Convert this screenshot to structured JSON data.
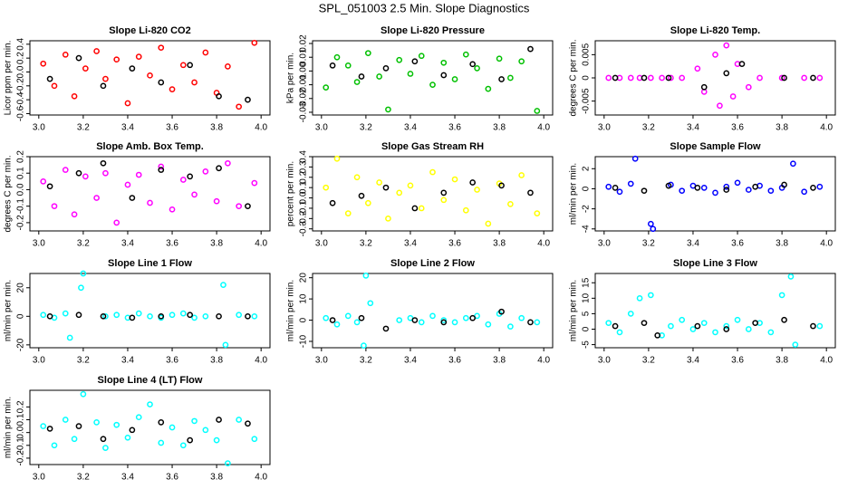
{
  "title": "SPL_051003  2.5 Min. Slope Diagnostics",
  "chart_data": [
    {
      "type": "scatter",
      "title": "Slope Li-820 CO2",
      "y_label": "Licor ppm per min.",
      "xlim": [
        2.96,
        4.04
      ],
      "ylim": [
        -0.62,
        0.45
      ],
      "xticks": [
        {
          "value": 3,
          "label": "3.0"
        },
        3.2,
        3.4,
        3.6,
        3.8,
        {
          "value": 4,
          "label": "4.0"
        }
      ],
      "yticks": [
        -0.6,
        -0.4,
        -0.2,
        {
          "value": 0,
          "label": "0.0"
        },
        0.2,
        0.4
      ],
      "series": [
        {
          "color": "#ff0000",
          "x": [
            3.02,
            3.07,
            3.12,
            3.16,
            3.21,
            3.26,
            3.3,
            3.35,
            3.4,
            3.45,
            3.5,
            3.55,
            3.6,
            3.65,
            3.7,
            3.75,
            3.8,
            3.85,
            3.9,
            3.97
          ],
          "values": [
            0.12,
            -0.2,
            0.25,
            -0.35,
            0.05,
            0.3,
            -0.1,
            0.18,
            -0.45,
            0.22,
            -0.05,
            0.35,
            -0.25,
            0.1,
            -0.15,
            0.28,
            -0.3,
            0.08,
            -0.5,
            0.42
          ]
        },
        {
          "color": "#000000",
          "x": [
            3.05,
            3.18,
            3.29,
            3.42,
            3.55,
            3.68,
            3.81,
            3.94
          ],
          "values": [
            -0.1,
            0.2,
            -0.2,
            0.05,
            -0.15,
            0.1,
            -0.35,
            -0.4
          ]
        }
      ]
    },
    {
      "type": "scatter",
      "title": "Slope Li-820 Pressure",
      "y_label": "kPa per min.",
      "xlim": [
        2.96,
        4.04
      ],
      "ylim": [
        -0.032,
        0.022
      ],
      "xticks": [
        {
          "value": 3,
          "label": "3.0"
        },
        3.2,
        3.4,
        3.6,
        3.8,
        {
          "value": 4,
          "label": "4.0"
        }
      ],
      "yticks": [
        -0.03,
        -0.02,
        -0.01,
        {
          "value": 0,
          "label": "0.00"
        },
        0.01,
        0.02
      ],
      "series": [
        {
          "color": "#00c000",
          "x": [
            3.02,
            3.07,
            3.12,
            3.16,
            3.21,
            3.26,
            3.3,
            3.35,
            3.4,
            3.45,
            3.5,
            3.55,
            3.6,
            3.65,
            3.7,
            3.75,
            3.8,
            3.85,
            3.9,
            3.97
          ],
          "values": [
            -0.012,
            0.01,
            0.004,
            -0.008,
            0.013,
            -0.004,
            -0.028,
            0.008,
            -0.002,
            0.011,
            -0.01,
            0.006,
            -0.006,
            0.012,
            0.002,
            -0.013,
            0.009,
            -0.005,
            0.007,
            -0.029
          ]
        },
        {
          "color": "#000000",
          "x": [
            3.05,
            3.18,
            3.29,
            3.42,
            3.55,
            3.68,
            3.81,
            3.94
          ],
          "values": [
            0.004,
            -0.004,
            0.002,
            0.007,
            -0.003,
            0.005,
            -0.006,
            0.016
          ]
        }
      ]
    },
    {
      "type": "scatter",
      "title": "Slope Li-820 Temp.",
      "y_label": "degrees C per min.",
      "xlim": [
        2.96,
        4.04
      ],
      "ylim": [
        -0.008,
        0.008
      ],
      "xticks": [
        {
          "value": 3,
          "label": "3.0"
        },
        3.2,
        3.4,
        3.6,
        3.8,
        {
          "value": 4,
          "label": "4.0"
        }
      ],
      "yticks": [
        -0.005,
        0,
        0.005
      ],
      "series": [
        {
          "color": "#ff00ff",
          "x": [
            3.02,
            3.07,
            3.12,
            3.16,
            3.21,
            3.26,
            3.3,
            3.35,
            3.42,
            3.45,
            3.5,
            3.52,
            3.55,
            3.58,
            3.6,
            3.65,
            3.7,
            3.8,
            3.9,
            3.97
          ],
          "values": [
            0,
            0,
            0,
            0,
            0,
            0,
            0,
            0,
            0.002,
            -0.003,
            0.005,
            -0.006,
            0.007,
            -0.004,
            0.003,
            -0.002,
            0,
            0,
            0,
            0
          ]
        },
        {
          "color": "#000000",
          "x": [
            3.05,
            3.18,
            3.29,
            3.45,
            3.55,
            3.62,
            3.81,
            3.94
          ],
          "values": [
            0,
            0,
            0,
            -0.002,
            0.001,
            0.003,
            0,
            0
          ]
        }
      ]
    },
    {
      "type": "scatter",
      "title": "Slope Amb. Box Temp.",
      "y_label": "degrees C per min.",
      "xlim": [
        2.96,
        4.04
      ],
      "ylim": [
        -0.25,
        0.2
      ],
      "xticks": [
        {
          "value": 3,
          "label": "3.0"
        },
        3.2,
        3.4,
        3.6,
        3.8,
        {
          "value": 4,
          "label": "4.0"
        }
      ],
      "yticks": [
        -0.2,
        -0.1,
        {
          "value": 0,
          "label": "0.0"
        },
        0.1,
        0.2
      ],
      "series": [
        {
          "color": "#ff00ff",
          "x": [
            3.02,
            3.07,
            3.12,
            3.16,
            3.21,
            3.26,
            3.3,
            3.35,
            3.4,
            3.45,
            3.5,
            3.55,
            3.6,
            3.65,
            3.7,
            3.75,
            3.8,
            3.85,
            3.9,
            3.97
          ],
          "values": [
            0.05,
            -0.1,
            0.12,
            -0.15,
            0.08,
            -0.05,
            0.1,
            -0.2,
            0.03,
            0.09,
            -0.08,
            0.14,
            -0.12,
            0.06,
            -0.03,
            0.11,
            -0.07,
            0.16,
            -0.1,
            0.04
          ]
        },
        {
          "color": "#000000",
          "x": [
            3.05,
            3.18,
            3.29,
            3.42,
            3.55,
            3.68,
            3.81,
            3.94
          ],
          "values": [
            0.02,
            0.1,
            0.16,
            -0.05,
            0.12,
            0.08,
            0.13,
            -0.1
          ]
        }
      ]
    },
    {
      "type": "scatter",
      "title": "Slope Gas Stream RH",
      "y_label": "percent per min.",
      "xlim": [
        2.96,
        4.04
      ],
      "ylim": [
        -0.32,
        0.4
      ],
      "xticks": [
        {
          "value": 3,
          "label": "3.0"
        },
        3.2,
        3.4,
        3.6,
        3.8,
        {
          "value": 4,
          "label": "4.0"
        }
      ],
      "yticks": [
        -0.3,
        -0.2,
        -0.1,
        {
          "value": 0,
          "label": "0.0"
        },
        0.1,
        0.2,
        0.3,
        0.4
      ],
      "series": [
        {
          "color": "#ffff00",
          "x": [
            3.02,
            3.07,
            3.12,
            3.16,
            3.21,
            3.26,
            3.3,
            3.35,
            3.4,
            3.45,
            3.5,
            3.55,
            3.6,
            3.65,
            3.7,
            3.75,
            3.8,
            3.85,
            3.9,
            3.97
          ],
          "values": [
            0.1,
            0.38,
            -0.15,
            0.2,
            -0.05,
            0.15,
            -0.2,
            0.05,
            0.12,
            -0.1,
            0.25,
            -0.02,
            0.18,
            -0.12,
            0.08,
            -0.25,
            0.14,
            -0.06,
            0.22,
            -0.15
          ]
        },
        {
          "color": "#000000",
          "x": [
            3.05,
            3.18,
            3.29,
            3.42,
            3.55,
            3.68,
            3.81,
            3.94
          ],
          "values": [
            -0.05,
            0.02,
            0.1,
            -0.1,
            0.05,
            0.15,
            0.12,
            0.05
          ]
        }
      ]
    },
    {
      "type": "scatter",
      "title": "Slope Sample Flow",
      "y_label": "ml/min per min.",
      "xlim": [
        2.96,
        4.04
      ],
      "ylim": [
        -4.2,
        3.2
      ],
      "xticks": [
        {
          "value": 3,
          "label": "3.0"
        },
        3.2,
        3.4,
        3.6,
        3.8,
        {
          "value": 4,
          "label": "4.0"
        }
      ],
      "yticks": [
        -4,
        -2,
        0,
        2
      ],
      "series": [
        {
          "color": "#0000ff",
          "x": [
            3.02,
            3.07,
            3.12,
            3.14,
            3.21,
            3.22,
            3.3,
            3.35,
            3.4,
            3.45,
            3.5,
            3.55,
            3.6,
            3.65,
            3.7,
            3.75,
            3.8,
            3.85,
            3.9,
            3.97
          ],
          "values": [
            0.2,
            -0.3,
            0.5,
            3,
            -3.5,
            -4,
            0.4,
            -0.2,
            0.3,
            0.1,
            -0.4,
            0.2,
            0.6,
            -0.1,
            0.3,
            -0.2,
            0.1,
            2.5,
            -0.3,
            0.2
          ]
        },
        {
          "color": "#000000",
          "x": [
            3.05,
            3.18,
            3.29,
            3.42,
            3.55,
            3.68,
            3.81,
            3.94
          ],
          "values": [
            0.1,
            -0.2,
            0.3,
            0.1,
            -0.1,
            0.2,
            0.4,
            0.1
          ]
        }
      ]
    },
    {
      "type": "scatter",
      "title": "Slope Line 1 Flow",
      "y_label": "ml/min per min.",
      "xlim": [
        2.96,
        4.04
      ],
      "ylim": [
        -22,
        30
      ],
      "xticks": [
        {
          "value": 3,
          "label": "3.0"
        },
        3.2,
        3.4,
        3.6,
        3.8,
        {
          "value": 4,
          "label": "4.0"
        }
      ],
      "yticks": [
        -20,
        0,
        20
      ],
      "series": [
        {
          "color": "#00ffff",
          "x": [
            3.02,
            3.07,
            3.12,
            3.14,
            3.19,
            3.2,
            3.3,
            3.35,
            3.4,
            3.45,
            3.5,
            3.55,
            3.6,
            3.65,
            3.7,
            3.75,
            3.83,
            3.84,
            3.9,
            3.97
          ],
          "values": [
            1,
            -1,
            2,
            -15,
            20,
            30,
            0,
            1,
            -1,
            2,
            0,
            -1,
            1,
            2,
            -1,
            0,
            22,
            -20,
            1,
            0
          ]
        },
        {
          "color": "#000000",
          "x": [
            3.05,
            3.18,
            3.29,
            3.42,
            3.55,
            3.68,
            3.81,
            3.94
          ],
          "values": [
            0,
            1,
            0,
            -1,
            0,
            1,
            0,
            0
          ]
        }
      ]
    },
    {
      "type": "scatter",
      "title": "Slope Line 2 Flow",
      "y_label": "ml/min per min.",
      "xlim": [
        2.96,
        4.04
      ],
      "ylim": [
        -13,
        22
      ],
      "xticks": [
        {
          "value": 3,
          "label": "3.0"
        },
        3.2,
        3.4,
        3.6,
        3.8,
        {
          "value": 4,
          "label": "4.0"
        }
      ],
      "yticks": [
        -10,
        0,
        10,
        20
      ],
      "series": [
        {
          "color": "#00ffff",
          "x": [
            3.02,
            3.07,
            3.12,
            3.16,
            3.19,
            3.2,
            3.22,
            3.35,
            3.4,
            3.45,
            3.5,
            3.55,
            3.6,
            3.65,
            3.7,
            3.75,
            3.8,
            3.85,
            3.9,
            3.97
          ],
          "values": [
            1,
            -2,
            2,
            -1,
            -12,
            21,
            8,
            0,
            1,
            -1,
            2,
            0,
            -1,
            1,
            2,
            -2,
            3,
            -3,
            1,
            -1
          ]
        },
        {
          "color": "#000000",
          "x": [
            3.05,
            3.18,
            3.29,
            3.42,
            3.55,
            3.68,
            3.81,
            3.94
          ],
          "values": [
            0,
            1,
            -4,
            0,
            -1,
            1,
            4,
            -1
          ]
        }
      ]
    },
    {
      "type": "scatter",
      "title": "Slope Line 3 Flow",
      "y_label": "ml/min per min.",
      "xlim": [
        2.96,
        4.04
      ],
      "ylim": [
        -6,
        18
      ],
      "xticks": [
        {
          "value": 3,
          "label": "3.0"
        },
        3.2,
        3.4,
        3.6,
        3.8,
        {
          "value": 4,
          "label": "4.0"
        }
      ],
      "yticks": [
        -5,
        0,
        5,
        10,
        15
      ],
      "series": [
        {
          "color": "#00ffff",
          "x": [
            3.02,
            3.07,
            3.12,
            3.16,
            3.21,
            3.26,
            3.3,
            3.35,
            3.4,
            3.45,
            3.5,
            3.55,
            3.6,
            3.65,
            3.7,
            3.75,
            3.8,
            3.84,
            3.86,
            3.97
          ],
          "values": [
            2,
            -1,
            5,
            10,
            11,
            -2,
            1,
            3,
            0,
            2,
            -1,
            1,
            3,
            0,
            2,
            -1,
            11,
            17,
            -5,
            1
          ]
        },
        {
          "color": "#000000",
          "x": [
            3.05,
            3.18,
            3.24,
            3.42,
            3.55,
            3.68,
            3.81,
            3.94
          ],
          "values": [
            1,
            2,
            -2,
            1,
            0,
            2,
            3,
            1
          ]
        }
      ]
    },
    {
      "type": "scatter",
      "title": "Slope Line 4 (LT) Flow",
      "y_label": "ml/min per min.",
      "xlim": [
        2.96,
        4.04
      ],
      "ylim": [
        -0.25,
        0.33
      ],
      "xticks": [
        {
          "value": 3,
          "label": "3.0"
        },
        3.2,
        3.4,
        3.6,
        3.8,
        {
          "value": 4,
          "label": "4.0"
        }
      ],
      "yticks": [
        -0.2,
        -0.1,
        {
          "value": 0,
          "label": "0.0"
        },
        0.1,
        0.2
      ],
      "series": [
        {
          "color": "#00ffff",
          "x": [
            3.02,
            3.07,
            3.12,
            3.16,
            3.2,
            3.26,
            3.3,
            3.35,
            3.4,
            3.45,
            3.5,
            3.55,
            3.6,
            3.65,
            3.7,
            3.75,
            3.8,
            3.85,
            3.9,
            3.97
          ],
          "values": [
            0.05,
            -0.1,
            0.1,
            -0.05,
            0.3,
            0.08,
            -0.12,
            0.06,
            -0.04,
            0.12,
            0.22,
            -0.08,
            0.04,
            -0.1,
            0.09,
            0.02,
            -0.06,
            -0.24,
            0.1,
            -0.05
          ]
        },
        {
          "color": "#000000",
          "x": [
            3.05,
            3.18,
            3.29,
            3.42,
            3.55,
            3.68,
            3.81,
            3.94
          ],
          "values": [
            0.03,
            0.05,
            -0.05,
            0.02,
            0.08,
            -0.06,
            0.1,
            0.07
          ]
        }
      ]
    }
  ]
}
